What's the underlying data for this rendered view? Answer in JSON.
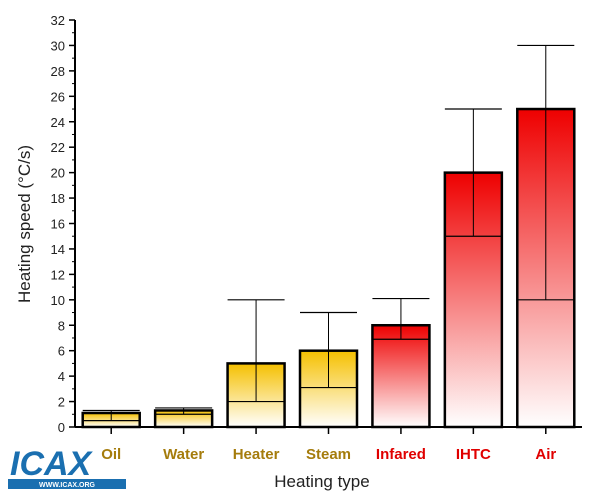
{
  "chart_data": {
    "type": "bar",
    "title": "",
    "xlabel": "Heating type",
    "ylabel": "Heating speed (°C/s)",
    "ylim": [
      0,
      32
    ],
    "yticks": [
      0,
      2,
      4,
      6,
      8,
      10,
      12,
      14,
      16,
      18,
      20,
      22,
      24,
      26,
      28,
      30,
      32
    ],
    "categories": [
      "Oil",
      "Water",
      "Heater",
      "Steam",
      "Infared",
      "IHTC",
      "Air"
    ],
    "values": [
      1.1,
      1.3,
      5,
      6,
      8,
      20,
      25
    ],
    "error_low": [
      0.5,
      1.0,
      2,
      3.1,
      6.9,
      15,
      10
    ],
    "error_high": [
      1.3,
      1.5,
      10,
      9,
      10.1,
      25,
      30
    ],
    "groups": [
      "conventional",
      "conventional",
      "conventional",
      "conventional",
      "rapid",
      "rapid",
      "rapid"
    ],
    "colors": {
      "conventional": "#f5c000",
      "rapid": "#ee0000",
      "conventional_label": "#a57c0c",
      "rapid_label": "#e00000"
    },
    "grid": false
  },
  "logo": {
    "text": "ICAX",
    "url_text": "WWW.ICAX.ORG"
  }
}
